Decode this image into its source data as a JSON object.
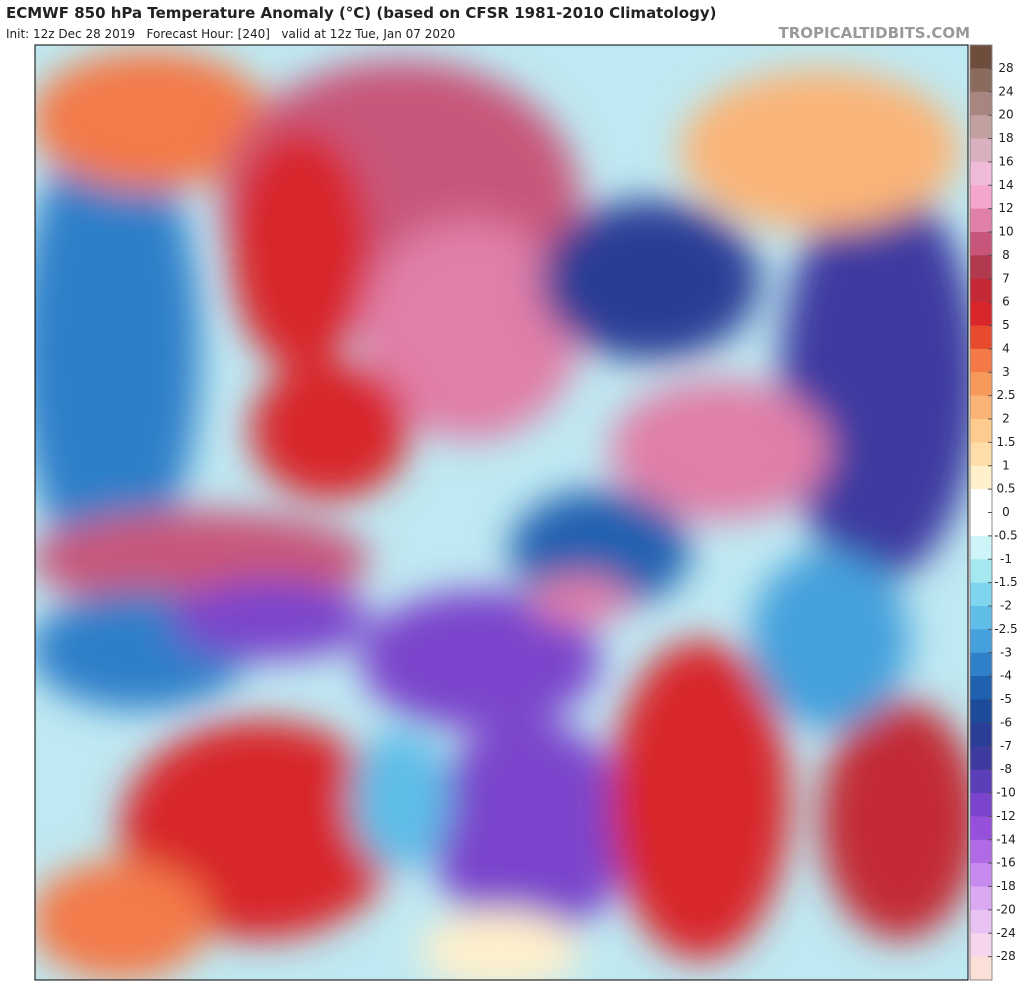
{
  "header": {
    "title": "ECMWF 850 hPa Temperature Anomaly (°C) (based on CFSR 1981-2010 Climatology)",
    "subtitle": "Init: 12z Dec 28 2019   Forecast Hour: [240]   valid at 12z Tue, Jan 07 2020",
    "watermark": "TROPICALTIDBITS.COM"
  },
  "colorbar": {
    "ticks": [
      28,
      24,
      20,
      18,
      16,
      14,
      12,
      10,
      8,
      7,
      6,
      5,
      4,
      3,
      2.5,
      2,
      1.5,
      1,
      0.5,
      0,
      -0.5,
      -1,
      -1.5,
      -2,
      -2.5,
      -3,
      -4,
      -5,
      -6,
      -7,
      -8,
      -10,
      -12,
      -14,
      -16,
      -18,
      -20,
      -24,
      -28
    ],
    "colors": [
      "#6e4d3d",
      "#8c6b5f",
      "#a8867f",
      "#c2a0a0",
      "#d9b0c0",
      "#f0bbd8",
      "#f4a6cf",
      "#e07fa8",
      "#c8567a",
      "#b23a4e",
      "#c32a35",
      "#d8262a",
      "#e84a2e",
      "#f37a48",
      "#f8995c",
      "#fbb477",
      "#fdcb8e",
      "#fedda8",
      "#fff0cc",
      "#ffffff",
      "#ffffff",
      "#cdf4f6",
      "#a6e8f0",
      "#7fd5ee",
      "#5fbde8",
      "#45a0dc",
      "#2f7fc9",
      "#2060b0",
      "#1e4a9a",
      "#2a3e95",
      "#3d3aa0",
      "#5a3fb8",
      "#7a45cc",
      "#9650dc",
      "#b06ae6",
      "#c88aee",
      "#dba8f2",
      "#e9c2f4",
      "#f5d6ec",
      "#fbe0d8"
    ]
  }
}
